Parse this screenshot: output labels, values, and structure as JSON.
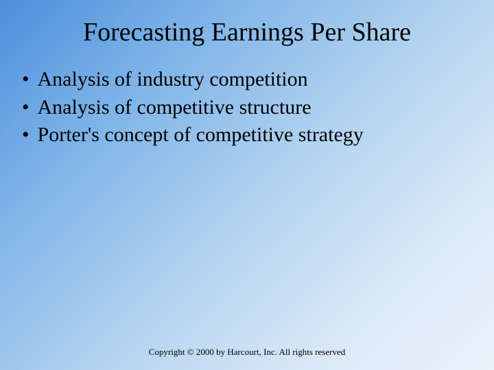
{
  "slide": {
    "title": "Forecasting Earnings Per Share",
    "bullets": [
      {
        "marker": "•",
        "text": "Analysis of industry competition"
      },
      {
        "marker": "•",
        "text": "Analysis of competitive structure"
      },
      {
        "marker": "•",
        "text": "Porter's concept of competitive strategy"
      }
    ],
    "footer": "Copyright © 2000 by Harcourt, Inc.  All rights reserved",
    "background": {
      "gradient_start": "#4d8fdb",
      "gradient_end": "#eaf2fb"
    },
    "typography": {
      "title_fontsize": 38,
      "bullet_fontsize": 30,
      "footer_fontsize": 13,
      "font_family": "Times New Roman",
      "text_color": "#000000"
    }
  }
}
